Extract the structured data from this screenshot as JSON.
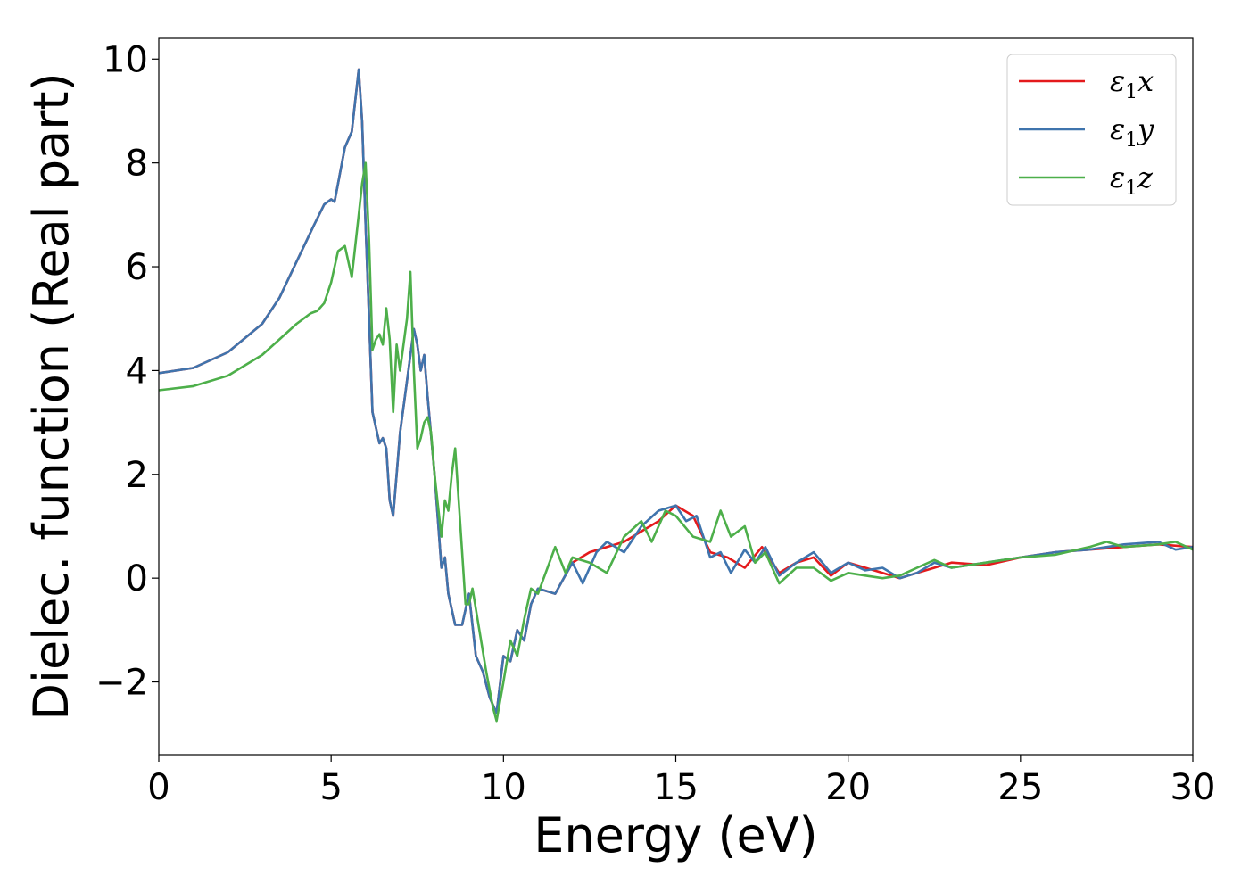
{
  "chart_data": {
    "type": "line",
    "xlabel": "Energy (eV)",
    "ylabel": "Dielec. function (Real part)",
    "xlim": [
      0,
      30
    ],
    "ylim": [
      -3.4,
      10.4
    ],
    "xticks": [
      0,
      5,
      10,
      15,
      20,
      25,
      30
    ],
    "xtick_labels": [
      "0",
      "5",
      "10",
      "15",
      "20",
      "25",
      "30"
    ],
    "yticks": [
      -2,
      0,
      2,
      4,
      6,
      8,
      10
    ],
    "ytick_labels": [
      "−2",
      "0",
      "2",
      "4",
      "6",
      "8",
      "10"
    ],
    "grid": false,
    "legend_position": "top-right",
    "series": [
      {
        "name": "ε1x",
        "legend_main": "ε",
        "legend_sub": "1",
        "legend_suffix": "x",
        "color": "#e41a1c",
        "x": [
          0,
          1,
          2,
          3,
          3.5,
          4,
          4.5,
          4.8,
          5.0,
          5.1,
          5.2,
          5.4,
          5.6,
          5.7,
          5.8,
          5.9,
          6.0,
          6.1,
          6.2,
          6.4,
          6.5,
          6.6,
          6.7,
          6.8,
          6.9,
          7.0,
          7.2,
          7.4,
          7.5,
          7.6,
          7.7,
          7.8,
          8.0,
          8.2,
          8.3,
          8.4,
          8.6,
          8.8,
          9.0,
          9.2,
          9.4,
          9.6,
          9.8,
          10.0,
          10.2,
          10.4,
          10.6,
          10.8,
          11.0,
          11.5,
          12.0,
          12.5,
          13.0,
          13.5,
          14.0,
          14.5,
          15.0,
          15.5,
          16.0,
          16.5,
          17.0,
          17.5,
          18.0,
          18.5,
          19.0,
          19.5,
          20.0,
          20.5,
          21.0,
          21.5,
          22.0,
          22.5,
          23.0,
          24.0,
          25.0,
          26.0,
          27.0,
          28.0,
          29.0,
          30.0
        ],
        "y": [
          3.95,
          4.05,
          4.35,
          4.9,
          5.4,
          6.1,
          6.8,
          7.2,
          7.3,
          7.25,
          7.6,
          8.3,
          8.6,
          9.2,
          9.8,
          8.8,
          6.8,
          5.0,
          3.2,
          2.6,
          2.7,
          2.5,
          1.5,
          1.2,
          2.0,
          2.8,
          3.8,
          4.8,
          4.5,
          4.0,
          4.3,
          3.5,
          2.0,
          0.2,
          0.4,
          -0.3,
          -0.9,
          -0.9,
          -0.3,
          -1.5,
          -1.8,
          -2.3,
          -2.6,
          -1.5,
          -1.6,
          -1.0,
          -1.2,
          -0.5,
          -0.2,
          -0.3,
          0.3,
          0.5,
          0.6,
          0.7,
          0.9,
          1.1,
          1.4,
          1.2,
          0.5,
          0.4,
          0.2,
          0.6,
          0.1,
          0.3,
          0.4,
          0.05,
          0.3,
          0.2,
          0.1,
          0.0,
          0.1,
          0.2,
          0.3,
          0.25,
          0.4,
          0.5,
          0.55,
          0.6,
          0.65,
          0.6
        ]
      },
      {
        "name": "ε1y",
        "legend_main": "ε",
        "legend_sub": "1",
        "legend_suffix": "y",
        "color": "#3f74ad",
        "x": [
          0,
          1,
          2,
          3,
          3.5,
          4,
          4.5,
          4.8,
          5.0,
          5.1,
          5.2,
          5.4,
          5.6,
          5.7,
          5.8,
          5.9,
          6.0,
          6.1,
          6.2,
          6.4,
          6.5,
          6.6,
          6.7,
          6.8,
          6.9,
          7.0,
          7.2,
          7.4,
          7.5,
          7.6,
          7.7,
          7.8,
          8.0,
          8.2,
          8.3,
          8.4,
          8.6,
          8.8,
          9.0,
          9.2,
          9.4,
          9.6,
          9.8,
          10.0,
          10.2,
          10.4,
          10.6,
          10.8,
          11.0,
          11.5,
          12.0,
          12.3,
          12.7,
          13.0,
          13.5,
          14.0,
          14.5,
          15.0,
          15.3,
          15.6,
          16.0,
          16.3,
          16.6,
          17.0,
          17.3,
          17.6,
          18.0,
          18.5,
          19.0,
          19.5,
          20.0,
          20.5,
          21.0,
          21.5,
          22.0,
          22.5,
          23.0,
          24.0,
          25.0,
          26.0,
          27.0,
          28.0,
          29.0,
          29.5,
          30.0
        ],
        "y": [
          3.95,
          4.05,
          4.35,
          4.9,
          5.4,
          6.1,
          6.8,
          7.2,
          7.3,
          7.25,
          7.6,
          8.3,
          8.6,
          9.2,
          9.8,
          8.8,
          6.8,
          5.0,
          3.2,
          2.6,
          2.7,
          2.5,
          1.5,
          1.2,
          2.0,
          2.8,
          3.8,
          4.8,
          4.5,
          4.0,
          4.3,
          3.5,
          2.0,
          0.2,
          0.4,
          -0.3,
          -0.9,
          -0.9,
          -0.3,
          -1.5,
          -1.8,
          -2.3,
          -2.6,
          -1.5,
          -1.6,
          -1.0,
          -1.2,
          -0.5,
          -0.2,
          -0.3,
          0.3,
          -0.1,
          0.5,
          0.7,
          0.5,
          1.0,
          1.3,
          1.4,
          1.1,
          1.2,
          0.4,
          0.5,
          0.1,
          0.55,
          0.3,
          0.6,
          0.05,
          0.3,
          0.5,
          0.1,
          0.3,
          0.15,
          0.2,
          0.0,
          0.1,
          0.3,
          0.2,
          0.3,
          0.4,
          0.5,
          0.55,
          0.65,
          0.7,
          0.55,
          0.6
        ]
      },
      {
        "name": "ε1z",
        "legend_main": "ε",
        "legend_sub": "1",
        "legend_suffix": "z",
        "color": "#4daf4a",
        "x": [
          0,
          1,
          2,
          3,
          3.5,
          4,
          4.4,
          4.6,
          4.8,
          5.0,
          5.2,
          5.4,
          5.6,
          5.8,
          5.9,
          6.0,
          6.1,
          6.2,
          6.3,
          6.4,
          6.5,
          6.6,
          6.7,
          6.8,
          6.9,
          7.0,
          7.2,
          7.3,
          7.4,
          7.5,
          7.6,
          7.7,
          7.8,
          7.9,
          8.0,
          8.1,
          8.2,
          8.3,
          8.4,
          8.5,
          8.6,
          8.7,
          8.8,
          8.9,
          9.0,
          9.1,
          9.3,
          9.5,
          9.7,
          9.8,
          10.0,
          10.2,
          10.4,
          10.6,
          10.8,
          11.0,
          11.5,
          11.8,
          12.0,
          12.5,
          13.0,
          13.5,
          14.0,
          14.3,
          14.7,
          15.0,
          15.5,
          16.0,
          16.3,
          16.6,
          17.0,
          17.3,
          17.6,
          18.0,
          18.5,
          19.0,
          19.5,
          20.0,
          20.5,
          21.0,
          21.5,
          22.0,
          22.5,
          23.0,
          24.0,
          25.0,
          26.0,
          27.0,
          27.5,
          28.0,
          29.0,
          29.5,
          30.0
        ],
        "y": [
          3.62,
          3.7,
          3.9,
          4.3,
          4.6,
          4.9,
          5.1,
          5.15,
          5.3,
          5.7,
          6.3,
          6.4,
          5.8,
          7.0,
          7.6,
          8.0,
          6.5,
          4.4,
          4.6,
          4.7,
          4.5,
          5.2,
          4.6,
          3.2,
          4.5,
          4.0,
          5.0,
          5.9,
          4.0,
          2.5,
          2.7,
          3.0,
          3.1,
          2.8,
          2.0,
          1.4,
          0.8,
          1.5,
          1.3,
          2.0,
          2.5,
          1.5,
          0.5,
          -0.5,
          -0.5,
          -0.2,
          -1.0,
          -1.8,
          -2.5,
          -2.75,
          -2.0,
          -1.2,
          -1.5,
          -0.8,
          -0.2,
          -0.3,
          0.6,
          0.1,
          0.4,
          0.3,
          0.1,
          0.8,
          1.1,
          0.7,
          1.3,
          1.2,
          0.8,
          0.7,
          1.3,
          0.8,
          1.0,
          0.3,
          0.5,
          -0.1,
          0.2,
          0.2,
          -0.05,
          0.1,
          0.05,
          0.0,
          0.05,
          0.2,
          0.35,
          0.2,
          0.3,
          0.4,
          0.45,
          0.6,
          0.7,
          0.6,
          0.65,
          0.7,
          0.55
        ]
      }
    ]
  }
}
